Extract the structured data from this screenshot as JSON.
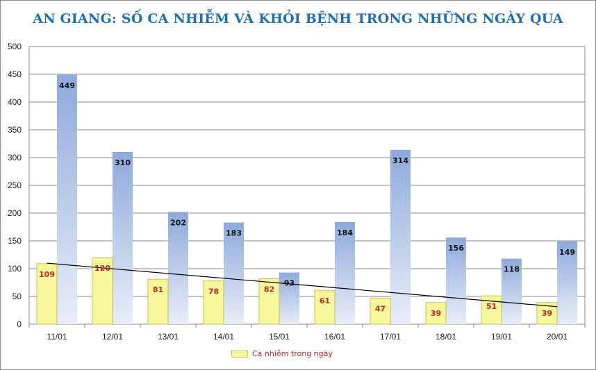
{
  "chart_data": {
    "type": "bar",
    "title": "AN GIANG: SỐ CA NHIỄM VÀ KHỎI BỆNH TRONG NHỮNG NGÀY QUA",
    "categories": [
      "11/01",
      "12/01",
      "13/01",
      "14/01",
      "15/01",
      "16/01",
      "17/01",
      "18/01",
      "19/01",
      "20/01"
    ],
    "series": [
      {
        "name": "Ca nhiễm trong ngày",
        "color": "#f6f69a",
        "label_color": "#c0262c",
        "values": [
          109,
          120,
          81,
          78,
          82,
          61,
          47,
          39,
          51,
          39
        ]
      },
      {
        "color": "#8faadc",
        "values": [
          449,
          310,
          202,
          183,
          93,
          184,
          314,
          156,
          118,
          149
        ]
      }
    ],
    "trendline": {
      "type": "linear",
      "series": 0,
      "color": "#000000"
    },
    "ylim": [
      0,
      500
    ],
    "yticks": [
      "0",
      "50",
      "100",
      "150",
      "200",
      "250",
      "300",
      "350",
      "400",
      "450",
      "500"
    ],
    "grid": true,
    "legend": {
      "position": "bottom",
      "entries": [
        "Ca nhiễm trong ngày"
      ]
    }
  }
}
